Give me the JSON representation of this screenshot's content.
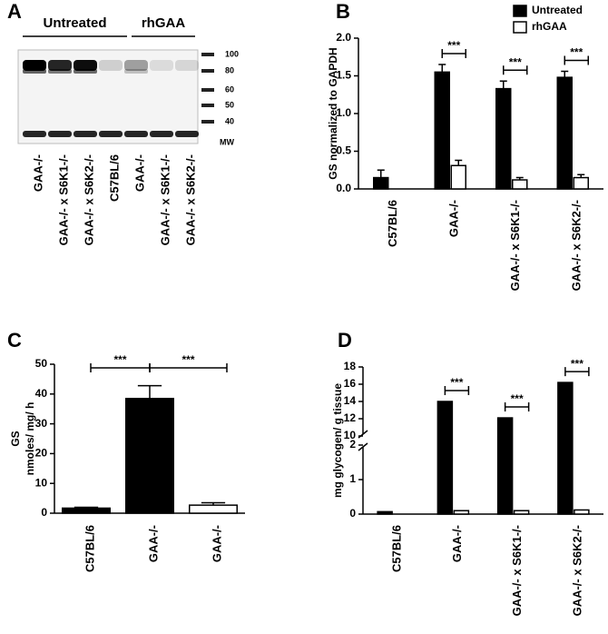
{
  "blot": {
    "panel_label": "A",
    "groups": [
      "Untreated",
      "rhGAA"
    ],
    "lanes": [
      "GAA-/-",
      "GAA-/- x S6K1-/-",
      "GAA-/- x S6K2-/-",
      "C57BL/6",
      "GAA-/-",
      "GAA-/- x S6K1-/-",
      "GAA-/- x S6K2-/-"
    ],
    "mw_markers": [
      "100",
      "80",
      "60",
      "50",
      "40"
    ],
    "mw_label": "MW"
  },
  "chart_data": [
    {
      "type": "bar",
      "panel_label": "B",
      "y_label": "GS normalized to GAPDH",
      "categories": [
        "C57BL/6",
        "GAA-/-",
        "GAA-/- x S6K1-/-",
        "GAA-/- x S6K2-/-"
      ],
      "series": [
        {
          "name": "Untreated",
          "color": "#000000",
          "values": [
            0.15,
            1.55,
            1.33,
            1.48
          ],
          "errors": [
            0.1,
            0.1,
            0.1,
            0.08
          ]
        },
        {
          "name": "rhGAA",
          "color": "#ffffff",
          "values": [
            null,
            0.31,
            0.12,
            0.15
          ],
          "errors": [
            null,
            0.07,
            0.03,
            0.04
          ]
        }
      ],
      "ylim": [
        0,
        2
      ],
      "yticks": [
        {
          "value": 0,
          "label": "0.0"
        },
        0.5,
        {
          "value": 1,
          "label": "1.0"
        },
        1.5,
        {
          "value": 2,
          "label": "2.0"
        }
      ],
      "annotations": [
        "***",
        "***",
        "***"
      ],
      "legend": "top-right"
    },
    {
      "type": "bar",
      "panel_label": "C",
      "y_label": [
        "GS",
        "nmoles/ mg/ h"
      ],
      "categories": [
        "C57BL/6",
        "GAA-/-",
        "GAA-/-"
      ],
      "values": [
        1.7,
        38.5,
        2.7
      ],
      "errors": [
        0.3,
        4.3,
        0.8
      ],
      "colors": [
        "#000000",
        "#000000",
        "#ffffff"
      ],
      "ylim": [
        0,
        50
      ],
      "yticks": [
        0,
        10,
        20,
        30,
        40,
        50
      ],
      "annotations": [
        "***",
        "***"
      ]
    },
    {
      "type": "bar",
      "panel_label": "D",
      "y_label": "mg glycogen/ g tissue",
      "categories": [
        "C57BL/6",
        "GAA-/-",
        "GAA-/- x S6K1-/-",
        "GAA-/- x S6K2-/-"
      ],
      "series": [
        {
          "name": "Untreated",
          "color": "#000000",
          "values": [
            0.07,
            14.0,
            12.1,
            16.2
          ]
        },
        {
          "name": "rhGAA",
          "color": "#ffffff",
          "values": [
            null,
            0.1,
            0.1,
            0.12
          ]
        }
      ],
      "ylim": [
        0,
        18
      ],
      "ybreak": [
        2,
        10
      ],
      "yticks": [
        0,
        1,
        2,
        10,
        12,
        14,
        16,
        18
      ],
      "annotations": [
        "***",
        "***",
        "***"
      ]
    }
  ]
}
